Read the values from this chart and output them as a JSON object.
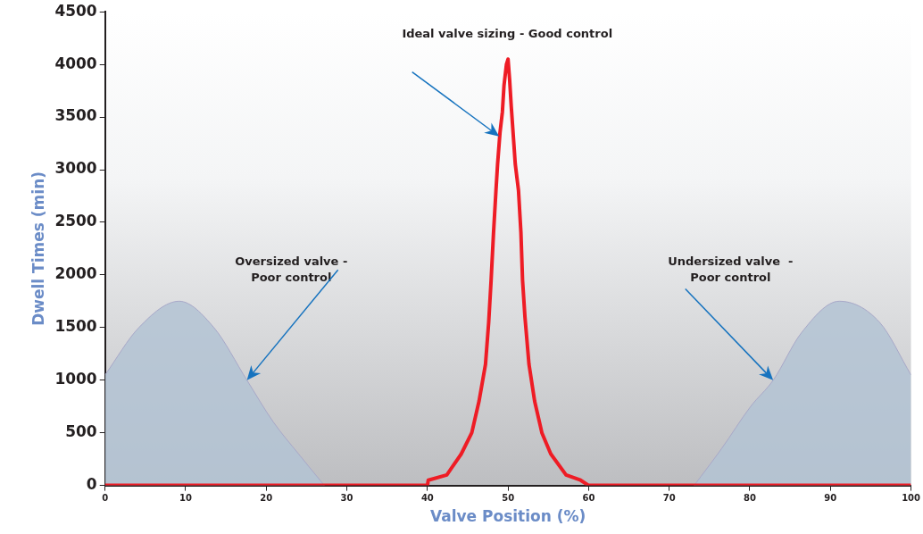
{
  "chart_data": {
    "type": "line",
    "xlabel": "Valve Position (%)",
    "ylabel": "Dwell Times (min)",
    "xlim": [
      0,
      100
    ],
    "xticks": [
      0,
      10,
      20,
      30,
      40,
      50,
      60,
      70,
      80,
      90,
      100
    ],
    "ylim": [
      0,
      4500
    ],
    "yticks": [
      0,
      500,
      1000,
      1500,
      2000,
      2500,
      3000,
      3500,
      4000,
      4500
    ],
    "grid": false,
    "legend": false,
    "marker": "none",
    "line_style": "solid",
    "series": [
      {
        "type": "area",
        "color": "#b3c3d3",
        "x": [
          0,
          4.2,
          9.2,
          13.5,
          17.6,
          20.9,
          24,
          27.2
        ],
        "values": [
          1050,
          1500,
          1750,
          1500,
          1000,
          600,
          300,
          0
        ]
      },
      {
        "type": "area",
        "color": "#b3c3d3",
        "x": [
          73.1,
          76.5,
          80.1,
          82.9,
          86.4,
          91.1,
          96.1,
          100
        ],
        "values": [
          0,
          350,
          750,
          1000,
          1450,
          1750,
          1550,
          1050
        ]
      },
      {
        "type": "line",
        "color": "#ee1c25",
        "x": [
          0,
          40,
          40.1,
          42.4,
          44.2,
          45.5,
          46.4,
          47.2,
          47.6,
          47.9,
          48.2,
          48.5,
          48.7,
          49.0,
          49.3,
          49.5,
          49.8,
          50.0,
          50.2,
          50.4,
          50.9,
          51.3,
          51.6,
          51.8,
          52.1,
          52.6,
          53.3,
          54.2,
          55.3,
          57.2,
          59.0,
          60,
          100
        ],
        "values": [
          0,
          0,
          50,
          100,
          300,
          500,
          800,
          1150,
          1550,
          1950,
          2400,
          2800,
          3050,
          3350,
          3550,
          3800,
          4000,
          4050,
          3850,
          3600,
          3050,
          2800,
          2400,
          1950,
          1600,
          1150,
          800,
          500,
          300,
          100,
          50,
          0,
          0
        ]
      }
    ],
    "annotations": [
      "Ideal valve sizing - Good control",
      "Oversized valve -\nPoor control",
      "Undersized valve  -\nPoor control"
    ]
  }
}
